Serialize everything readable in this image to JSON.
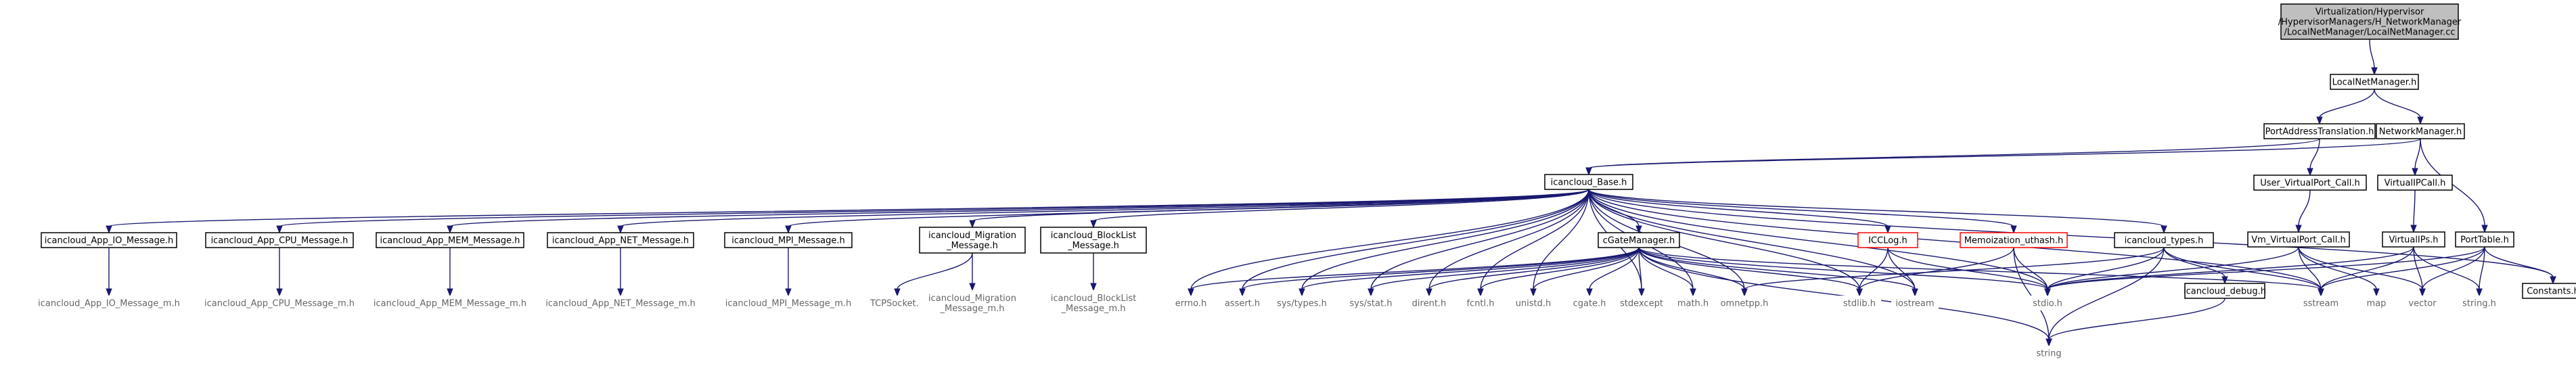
{
  "graph": {
    "colors": {
      "edge": "#191970",
      "node_border": "#000000",
      "red_border": "#ff0000",
      "root_fill": "#bfbfbf",
      "leaf_text": "#666666"
    },
    "nodes": [
      {
        "id": "root",
        "lines": [
          "Virtualization/Hypervisor",
          "/HypervisorManagers/H_NetworkManager",
          "/LocalNetManager/LocalNetManager.cc"
        ],
        "style": "root"
      },
      {
        "id": "localnet",
        "lines": [
          "LocalNetManager.h"
        ],
        "style": "box"
      },
      {
        "id": "pat",
        "lines": [
          "PortAddressTranslation.h"
        ],
        "style": "box"
      },
      {
        "id": "netman",
        "lines": [
          "NetworkManager.h"
        ],
        "style": "box"
      },
      {
        "id": "base",
        "lines": [
          "icancloud_Base.h"
        ],
        "style": "box"
      },
      {
        "id": "uservp",
        "lines": [
          "User_VirtualPort_Call.h"
        ],
        "style": "box"
      },
      {
        "id": "vipcall",
        "lines": [
          "VirtualIPCall.h"
        ],
        "style": "box"
      },
      {
        "id": "vmvp",
        "lines": [
          "Vm_VirtualPort_Call.h"
        ],
        "style": "box"
      },
      {
        "id": "vips",
        "lines": [
          "VirtualIPs.h"
        ],
        "style": "box"
      },
      {
        "id": "porttable",
        "lines": [
          "PortTable.h"
        ],
        "style": "box"
      },
      {
        "id": "io",
        "lines": [
          "icancloud_App_IO_Message.h"
        ],
        "style": "box"
      },
      {
        "id": "cpu",
        "lines": [
          "icancloud_App_CPU_Message.h"
        ],
        "style": "box"
      },
      {
        "id": "mem",
        "lines": [
          "icancloud_App_MEM_Message.h"
        ],
        "style": "box"
      },
      {
        "id": "net",
        "lines": [
          "icancloud_App_NET_Message.h"
        ],
        "style": "box"
      },
      {
        "id": "mpi",
        "lines": [
          "icancloud_MPI_Message.h"
        ],
        "style": "box"
      },
      {
        "id": "mig",
        "lines": [
          "icancloud_Migration",
          "_Message.h"
        ],
        "style": "box"
      },
      {
        "id": "block",
        "lines": [
          "icancloud_BlockList",
          "_Message.h"
        ],
        "style": "box"
      },
      {
        "id": "cgate",
        "lines": [
          "cGateManager.h"
        ],
        "style": "box"
      },
      {
        "id": "icclog",
        "lines": [
          "ICCLog.h"
        ],
        "style": "red"
      },
      {
        "id": "memo",
        "lines": [
          "Memoization_uthash.h"
        ],
        "style": "red"
      },
      {
        "id": "types",
        "lines": [
          "icancloud_types.h"
        ],
        "style": "box"
      },
      {
        "id": "debug",
        "lines": [
          "icancloud_debug.h"
        ],
        "style": "box"
      },
      {
        "id": "constants",
        "lines": [
          "Constants.h"
        ],
        "style": "box"
      },
      {
        "id": "io_m",
        "lines": [
          "icancloud_App_IO_Message_m.h"
        ],
        "style": "leaf"
      },
      {
        "id": "cpu_m",
        "lines": [
          "icancloud_App_CPU_Message_m.h"
        ],
        "style": "leaf"
      },
      {
        "id": "mem_m",
        "lines": [
          "icancloud_App_MEM_Message_m.h"
        ],
        "style": "leaf"
      },
      {
        "id": "net_m",
        "lines": [
          "icancloud_App_NET_Message_m.h"
        ],
        "style": "leaf"
      },
      {
        "id": "mpi_m",
        "lines": [
          "icancloud_MPI_Message_m.h"
        ],
        "style": "leaf"
      },
      {
        "id": "tcp",
        "lines": [
          "TCPSocket.h"
        ],
        "style": "leaf"
      },
      {
        "id": "mig_m",
        "lines": [
          "icancloud_Migration",
          "_Message_m.h"
        ],
        "style": "leaf"
      },
      {
        "id": "block_m",
        "lines": [
          "icancloud_BlockList",
          "_Message_m.h"
        ],
        "style": "leaf"
      },
      {
        "id": "errno",
        "lines": [
          "errno.h"
        ],
        "style": "leaf"
      },
      {
        "id": "assert",
        "lines": [
          "assert.h"
        ],
        "style": "leaf"
      },
      {
        "id": "systypes",
        "lines": [
          "sys/types.h"
        ],
        "style": "leaf"
      },
      {
        "id": "sysstat",
        "lines": [
          "sys/stat.h"
        ],
        "style": "leaf"
      },
      {
        "id": "dirent",
        "lines": [
          "dirent.h"
        ],
        "style": "leaf"
      },
      {
        "id": "fcntl",
        "lines": [
          "fcntl.h"
        ],
        "style": "leaf"
      },
      {
        "id": "unistd",
        "lines": [
          "unistd.h"
        ],
        "style": "leaf"
      },
      {
        "id": "cgate_h",
        "lines": [
          "cgate.h"
        ],
        "style": "leaf"
      },
      {
        "id": "stdexcept",
        "lines": [
          "stdexcept"
        ],
        "style": "leaf"
      },
      {
        "id": "math",
        "lines": [
          "math.h"
        ],
        "style": "leaf"
      },
      {
        "id": "omnetpp",
        "lines": [
          "omnetpp.h"
        ],
        "style": "leaf"
      },
      {
        "id": "stdlib",
        "lines": [
          "stdlib.h"
        ],
        "style": "leaf"
      },
      {
        "id": "iostream",
        "lines": [
          "iostream"
        ],
        "style": "leaf"
      },
      {
        "id": "stdio",
        "lines": [
          "stdio.h"
        ],
        "style": "leaf"
      },
      {
        "id": "sstream",
        "lines": [
          "sstream"
        ],
        "style": "leaf"
      },
      {
        "id": "mapn",
        "lines": [
          "map"
        ],
        "style": "leaf"
      },
      {
        "id": "vector",
        "lines": [
          "vector"
        ],
        "style": "leaf"
      },
      {
        "id": "stringh",
        "lines": [
          "string.h"
        ],
        "style": "leaf"
      },
      {
        "id": "string",
        "lines": [
          "string"
        ],
        "style": "leaf"
      }
    ],
    "edges": [
      [
        "root",
        "localnet"
      ],
      [
        "localnet",
        "pat"
      ],
      [
        "localnet",
        "netman"
      ],
      [
        "pat",
        "base"
      ],
      [
        "pat",
        "uservp"
      ],
      [
        "netman",
        "base"
      ],
      [
        "netman",
        "vipcall"
      ],
      [
        "netman",
        "porttable"
      ],
      [
        "uservp",
        "vmvp"
      ],
      [
        "vipcall",
        "vips"
      ],
      [
        "base",
        "io"
      ],
      [
        "base",
        "cpu"
      ],
      [
        "base",
        "mem"
      ],
      [
        "base",
        "net"
      ],
      [
        "base",
        "mpi"
      ],
      [
        "base",
        "mig"
      ],
      [
        "base",
        "block"
      ],
      [
        "base",
        "errno"
      ],
      [
        "base",
        "assert"
      ],
      [
        "base",
        "systypes"
      ],
      [
        "base",
        "sysstat"
      ],
      [
        "base",
        "dirent"
      ],
      [
        "base",
        "fcntl"
      ],
      [
        "base",
        "unistd"
      ],
      [
        "base",
        "cgate"
      ],
      [
        "base",
        "stdexcept"
      ],
      [
        "base",
        "math"
      ],
      [
        "base",
        "omnetpp"
      ],
      [
        "base",
        "stdlib"
      ],
      [
        "base",
        "iostream"
      ],
      [
        "base",
        "stdio"
      ],
      [
        "base",
        "icclog"
      ],
      [
        "base",
        "memo"
      ],
      [
        "base",
        "types"
      ],
      [
        "base",
        "sstream"
      ],
      [
        "base",
        "constants"
      ],
      [
        "io",
        "io_m"
      ],
      [
        "cpu",
        "cpu_m"
      ],
      [
        "mem",
        "mem_m"
      ],
      [
        "net",
        "net_m"
      ],
      [
        "mpi",
        "mpi_m"
      ],
      [
        "mig",
        "tcp"
      ],
      [
        "mig",
        "mig_m"
      ],
      [
        "block",
        "block_m"
      ],
      [
        "cgate",
        "errno"
      ],
      [
        "cgate",
        "assert"
      ],
      [
        "cgate",
        "systypes"
      ],
      [
        "cgate",
        "sysstat"
      ],
      [
        "cgate",
        "dirent"
      ],
      [
        "cgate",
        "fcntl"
      ],
      [
        "cgate",
        "unistd"
      ],
      [
        "cgate",
        "cgate_h"
      ],
      [
        "cgate",
        "stdexcept"
      ],
      [
        "cgate",
        "math"
      ],
      [
        "cgate",
        "omnetpp"
      ],
      [
        "cgate",
        "stdlib"
      ],
      [
        "cgate",
        "iostream"
      ],
      [
        "cgate",
        "stdio"
      ],
      [
        "cgate",
        "sstream"
      ],
      [
        "cgate",
        "string"
      ],
      [
        "icclog",
        "stdlib"
      ],
      [
        "icclog",
        "iostream"
      ],
      [
        "icclog",
        "stdio"
      ],
      [
        "memo",
        "stdlib"
      ],
      [
        "memo",
        "stdio"
      ],
      [
        "memo",
        "string"
      ],
      [
        "types",
        "omnetpp"
      ],
      [
        "types",
        "stdio"
      ],
      [
        "types",
        "string"
      ],
      [
        "types",
        "debug"
      ],
      [
        "types",
        "sstream"
      ],
      [
        "debug",
        "string"
      ],
      [
        "vmvp",
        "stdio"
      ],
      [
        "vmvp",
        "sstream"
      ],
      [
        "vmvp",
        "mapn"
      ],
      [
        "vmvp",
        "vector"
      ],
      [
        "vips",
        "stdio"
      ],
      [
        "vips",
        "sstream"
      ],
      [
        "vips",
        "vector"
      ],
      [
        "vips",
        "stringh"
      ],
      [
        "porttable",
        "stdio"
      ],
      [
        "porttable",
        "sstream"
      ],
      [
        "porttable",
        "vector"
      ],
      [
        "porttable",
        "stringh"
      ],
      [
        "porttable",
        "constants"
      ]
    ]
  }
}
